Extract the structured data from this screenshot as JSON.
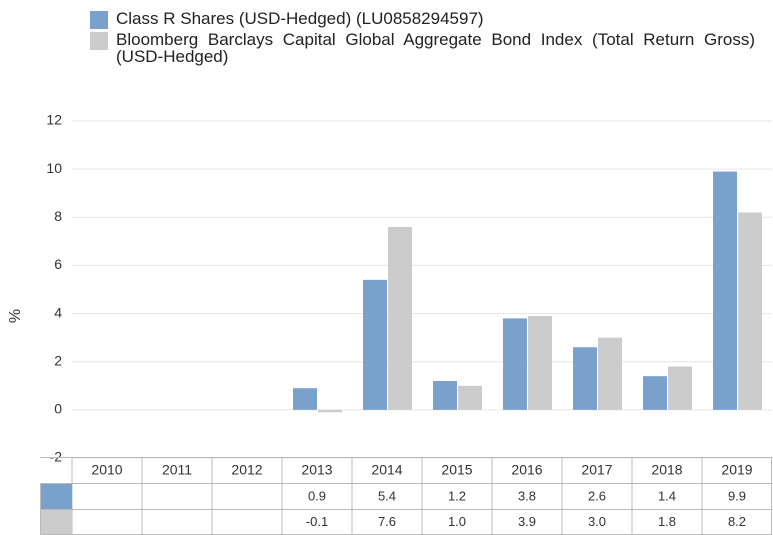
{
  "chart_data": {
    "type": "bar",
    "ylabel": "%",
    "categories": [
      "2010",
      "2011",
      "2012",
      "2013",
      "2014",
      "2015",
      "2016",
      "2017",
      "2018",
      "2019"
    ],
    "series": [
      {
        "name": "Class R Shares (USD-Hedged) (LU0858294597)",
        "color": "#7aa0cc",
        "values": [
          null,
          null,
          null,
          0.9,
          5.4,
          1.2,
          3.8,
          2.6,
          1.4,
          9.9
        ]
      },
      {
        "name": "Bloomberg Barclays Capital Global Aggregate Bond Index (Total Return Gross) (USD-Hedged)",
        "color": "#cccccc",
        "values": [
          null,
          null,
          null,
          -0.1,
          7.6,
          1.0,
          3.9,
          3.0,
          1.8,
          8.2
        ],
        "value_labels": [
          null,
          null,
          null,
          "-0.1",
          "7.6",
          "1.0",
          "3.9",
          "3.0",
          "1.8",
          "8.2"
        ]
      }
    ],
    "ylim": [
      -2,
      12
    ],
    "yticks": [
      -2,
      0,
      2,
      4,
      6,
      8,
      10,
      12
    ],
    "grid": true
  }
}
